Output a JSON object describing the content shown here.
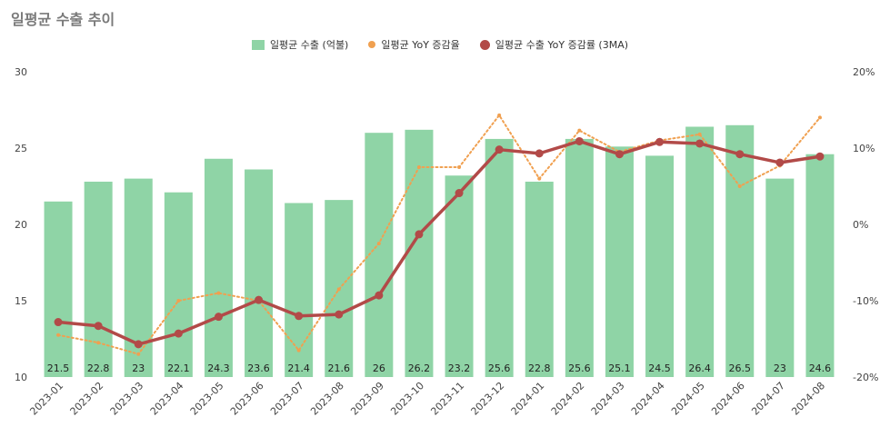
{
  "title": "일평균 수출 추이",
  "legend": {
    "bar": "일평균 수출 (억불)",
    "yoy": "일평균 YoY 증감율",
    "ma": "일평균 수출 YoY 증감률 (3MA)"
  },
  "colors": {
    "bar": "#8fd4a6",
    "yoy": "#f0a050",
    "ma": "#b24a48"
  },
  "chart_data": {
    "type": "bar",
    "title": "일평균 수출 추이",
    "categories": [
      "2023-01",
      "2023-02",
      "2023-03",
      "2023-04",
      "2023-05",
      "2023-06",
      "2023-07",
      "2023-08",
      "2023-09",
      "2023-10",
      "2023-11",
      "2023-12",
      "2024-01",
      "2024-02",
      "2024-03",
      "2024-04",
      "2024-05",
      "2024-06",
      "2024-07",
      "2024-08"
    ],
    "ylim": [
      10,
      30
    ],
    "y_ticks": [
      "10",
      "15",
      "20",
      "25",
      "30"
    ],
    "y2lim": [
      -20,
      20
    ],
    "y2_ticks": [
      "-20%",
      "-10%",
      "0%",
      "10%",
      "20%"
    ],
    "series": [
      {
        "name": "일평균 수출 (억불)",
        "type": "bar",
        "axis": "left",
        "values": [
          21.5,
          22.8,
          23,
          22.1,
          24.3,
          23.6,
          21.4,
          21.6,
          26,
          26.2,
          23.2,
          25.6,
          22.8,
          25.6,
          25.1,
          24.5,
          26.4,
          26.5,
          23,
          24.6
        ],
        "labels": [
          "21.5",
          "22.8",
          "23",
          "22.1",
          "24.3",
          "23.6",
          "21.4",
          "21.6",
          "26",
          "26.2",
          "23.2",
          "25.6",
          "22.8",
          "25.6",
          "25.1",
          "24.5",
          "26.4",
          "26.5",
          "23",
          "24.6"
        ]
      },
      {
        "name": "일평균 YoY 증감율",
        "type": "line",
        "axis": "right",
        "style": "dotted",
        "values": [
          -14.5,
          -15.5,
          -17.0,
          -10.0,
          -9.0,
          -10.0,
          -16.5,
          -8.5,
          -2.5,
          7.5,
          7.5,
          14.3,
          6.0,
          12.3,
          9.5,
          11.0,
          11.8,
          5.0,
          7.7,
          14.0
        ]
      },
      {
        "name": "일평균 수출 YoY 증감률 (3MA)",
        "type": "line",
        "axis": "right",
        "style": "solid",
        "values": [
          -12.8,
          -13.3,
          -15.7,
          -14.3,
          -12.1,
          -9.9,
          -12.0,
          -11.8,
          -9.3,
          -1.3,
          4.1,
          9.8,
          9.3,
          10.9,
          9.2,
          10.8,
          10.6,
          9.2,
          8.1,
          8.9
        ]
      }
    ],
    "grid": false,
    "legend_position": "top"
  }
}
